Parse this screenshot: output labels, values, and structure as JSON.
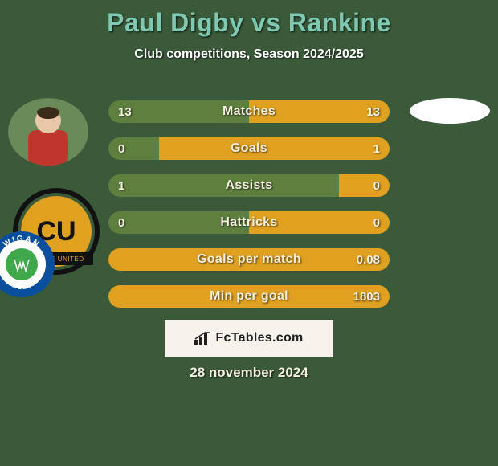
{
  "colors": {
    "background": "#3a5a3a",
    "title": "#7fc9b3",
    "subtitle_text": "#ffffff",
    "bar_green": "#5f7f3f",
    "bar_amber": "#e0a020",
    "bar_text": "#f5f0e0",
    "footer_box_bg": "#f7f3ec",
    "footer_box_text": "#202020",
    "date_text": "#f5f0e0",
    "avatar_left_bg": "#c0362c",
    "avatar_right_bg": "#ffffff",
    "club_left_outer": "#e0a020",
    "club_left_inner": "#e0a020",
    "club_left_text": "#111111",
    "wigan_outer": "#0a4f9e",
    "wigan_mid": "#ffffff",
    "wigan_inner": "#3fa84a"
  },
  "header": {
    "title": "Paul Digby vs Rankine",
    "subtitle": "Club competitions, Season 2024/2025"
  },
  "badges": {
    "cu_text": "CU",
    "cu_banner": "BRIDGE UNITED",
    "wigan_top": "WIGAN",
    "wigan_bottom": "ATHLETIC"
  },
  "bars": [
    {
      "label": "Matches",
      "left": "13",
      "right": "13",
      "left_pct": 50,
      "right_pct": 50
    },
    {
      "label": "Goals",
      "left": "0",
      "right": "1",
      "left_pct": 18,
      "right_pct": 82
    },
    {
      "label": "Assists",
      "left": "1",
      "right": "0",
      "left_pct": 82,
      "right_pct": 18
    },
    {
      "label": "Hattricks",
      "left": "0",
      "right": "0",
      "left_pct": 50,
      "right_pct": 50
    },
    {
      "label": "Goals per match",
      "left": "",
      "right": "0.08",
      "left_pct": 0,
      "right_pct": 100
    },
    {
      "label": "Min per goal",
      "left": "",
      "right": "1803",
      "left_pct": 0,
      "right_pct": 100
    }
  ],
  "footer": {
    "brand": "FcTables.com",
    "date": "28 november 2024"
  }
}
